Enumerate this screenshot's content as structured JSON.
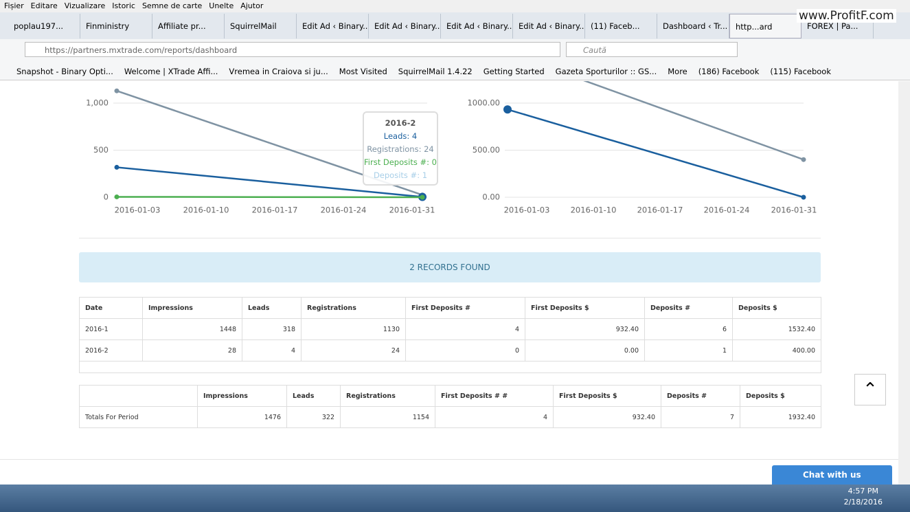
{
  "menu": [
    "Fișier",
    "Editare",
    "Vizualizare",
    "Istoric",
    "Semne de carte",
    "Unelte",
    "Ajutor"
  ],
  "watermark": "www.ProfitF.com",
  "tabs": [
    "poplau197...",
    "Finministry",
    "Affiliate pr...",
    "SquirrelMail",
    "Edit Ad ‹ Binary...",
    "Edit Ad ‹ Binary...",
    "Edit Ad ‹ Binary...",
    "Edit Ad ‹ Binary...",
    "(11) Faceb...",
    "Dashboard ‹ Tr...",
    "http...ard",
    "FOREX | Pa..."
  ],
  "url": "https://partners.mxtrade.com/reports/dashboard",
  "search": "Caută",
  "bookmarks": [
    "Snapshot - Binary Opti...",
    "Welcome | XTrade Affi...",
    "Vremea in Craiova si ju...",
    "Most Visited",
    "SquirrelMail 1.4.22",
    "Getting Started",
    "Gazeta Sporturilor :: GS...",
    "More",
    "(186) Facebook",
    "(115) Facebook"
  ],
  "chart_data": [
    {
      "type": "line",
      "xticks": [
        "2016-01-03",
        "2016-01-10",
        "2016-01-17",
        "2016-01-24",
        "2016-01-31"
      ],
      "ylim": [
        0,
        1000
      ],
      "yticks": [
        0,
        500,
        {
          "value": 1000,
          "label": "1,000"
        }
      ],
      "grid": true,
      "series": [
        {
          "name": "Registrations",
          "color": "#7f93a3",
          "values": [
            1130,
            24
          ]
        },
        {
          "name": "Leads",
          "color": "#1a5f9e",
          "values": [
            318,
            4
          ]
        },
        {
          "name": "First Deposits #",
          "color": "#4caf50",
          "values": [
            4,
            0
          ]
        }
      ],
      "tooltip": {
        "title": "2016-2",
        "lines": [
          "Leads: 4",
          "Registrations: 24",
          "First Deposits #: 0",
          "Deposits #: 1"
        ]
      }
    },
    {
      "type": "line",
      "xticks": [
        "2016-01-03",
        "2016-01-10",
        "2016-01-17",
        "2016-01-24",
        "2016-01-31"
      ],
      "ylim": [
        0,
        1000
      ],
      "yticks": [
        {
          "value": 0,
          "label": "0.00"
        },
        {
          "value": 500,
          "label": "500.00"
        },
        {
          "value": 1000,
          "label": "1000.00"
        }
      ],
      "grid": true,
      "series": [
        {
          "name": "Deposits $",
          "color": "#7f93a3",
          "values": [
            1532.4,
            400
          ]
        },
        {
          "name": "First Deposits $",
          "color": "#1a5f9e",
          "values": [
            932.4,
            0
          ]
        }
      ]
    }
  ],
  "banner": "2 RECORDS FOUND",
  "table": {
    "headers": [
      "Date",
      "Impressions",
      "Leads",
      "Registrations",
      "First Deposits #",
      "First Deposits $",
      "Deposits #",
      "Deposits $"
    ],
    "rows": [
      [
        "2016-1",
        "1448",
        "318",
        "1130",
        "4",
        "932.40",
        "6",
        "1532.40"
      ],
      [
        "2016-2",
        "28",
        "4",
        "24",
        "0",
        "0.00",
        "1",
        "400.00"
      ]
    ]
  },
  "totals": {
    "headers": [
      "Impressions",
      "Leads",
      "Registrations",
      "First Deposits # #",
      "First Deposits $",
      "Deposits #",
      "Deposits $"
    ],
    "label": "Totals For Period",
    "row": [
      "1476",
      "322",
      "1154",
      "4",
      "932.40",
      "7",
      "1932.40"
    ]
  },
  "chat": "Chat with us",
  "clock": {
    "time": "4:57 PM",
    "date": "2/18/2016"
  }
}
